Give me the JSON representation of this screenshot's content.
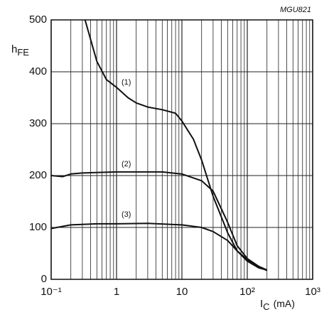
{
  "chart_data": {
    "type": "line",
    "code": "MGU821",
    "y_label": {
      "main": "h",
      "sub": "FE"
    },
    "x_label": {
      "main": "I",
      "sub": "C",
      "unit": "(mA)"
    },
    "annotations": [
      "(1)",
      "(2)",
      "(3)"
    ],
    "x_scale": "log",
    "grid": true,
    "minor_grid": true,
    "xlim": [
      0.1,
      1000
    ],
    "ylim": [
      0,
      500
    ],
    "xticks": [
      {
        "value": 0.1,
        "label": "10⁻¹"
      },
      1,
      10,
      {
        "value": 100,
        "label": "10²"
      },
      {
        "value": 1000,
        "label": "10³"
      }
    ],
    "yticks": [
      0,
      100,
      200,
      300,
      400,
      500
    ],
    "series": [
      {
        "color": "#111111",
        "x": [
          0.33,
          0.5,
          0.7,
          1,
          1.5,
          2,
          3,
          5,
          8,
          10,
          15,
          20,
          30,
          50,
          70,
          100,
          150,
          200
        ],
        "values": [
          500,
          420,
          385,
          370,
          350,
          340,
          332,
          327,
          320,
          305,
          270,
          230,
          160,
          90,
          55,
          35,
          22,
          18
        ]
      },
      {
        "color": "#111111",
        "x": [
          0.1,
          0.15,
          0.2,
          0.3,
          1,
          5,
          10,
          20,
          30,
          50,
          70,
          100,
          150,
          200
        ],
        "values": [
          200,
          198,
          203,
          205,
          207,
          207,
          203,
          190,
          170,
          110,
          65,
          40,
          25,
          18
        ]
      },
      {
        "color": "#111111",
        "x": [
          0.1,
          0.2,
          0.5,
          1,
          3,
          10,
          20,
          30,
          50,
          70,
          100,
          150,
          200
        ],
        "values": [
          98,
          105,
          107,
          107,
          108,
          105,
          100,
          92,
          75,
          55,
          38,
          24,
          17
        ]
      }
    ]
  }
}
